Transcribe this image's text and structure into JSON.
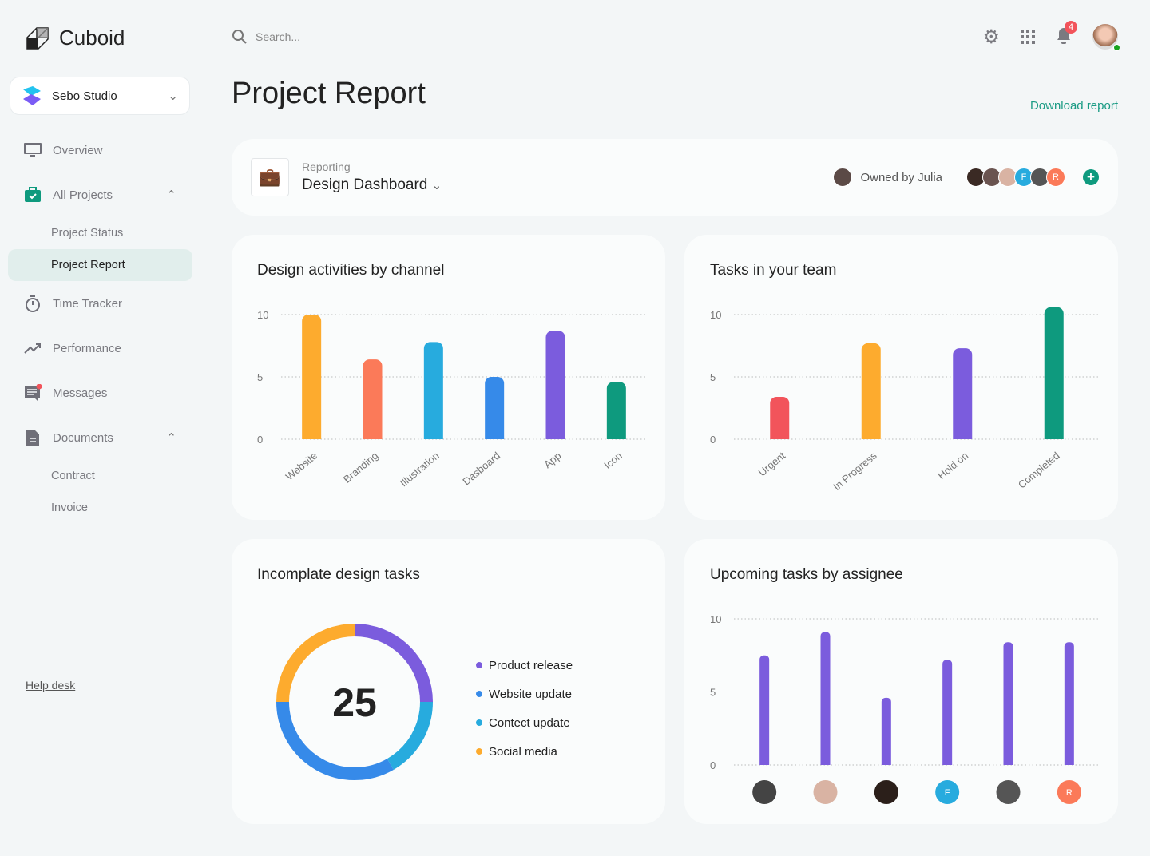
{
  "app": {
    "name": "Cuboid",
    "workspace": "Sebo Studio"
  },
  "sidebar": {
    "items": [
      {
        "label": "Overview",
        "icon": "monitor-icon"
      },
      {
        "label": "All Projects",
        "icon": "briefcase-check-icon"
      },
      {
        "label": "Project Status"
      },
      {
        "label": "Project Report",
        "active": true
      },
      {
        "label": "Time Tracker",
        "icon": "stopwatch-icon"
      },
      {
        "label": "Performance",
        "icon": "trend-icon"
      },
      {
        "label": "Messages",
        "icon": "message-icon"
      },
      {
        "label": "Documents",
        "icon": "document-icon"
      },
      {
        "label": "Contract"
      },
      {
        "label": "Invoice"
      }
    ],
    "help": "Help desk"
  },
  "header": {
    "search_placeholder": "Search...",
    "notifications": "4",
    "title": "Project Report",
    "download": "Download report"
  },
  "report": {
    "small": "Reporting",
    "name": "Design Dashboard",
    "owner": "Owned by Julia",
    "members": [
      "F",
      "R"
    ]
  },
  "colors": {
    "accent": "#0e9a7e",
    "orange": "#fdab2e",
    "coral": "#fb7a59",
    "cyan": "#27abde",
    "blue": "#368ae9",
    "purple": "#7b5cdd",
    "red": "#f2545b"
  },
  "chart_data": [
    {
      "type": "bar",
      "title": "Design activities by channel",
      "categories": [
        "Website",
        "Branding",
        "Illustration",
        "Dasboard",
        "App",
        "Icon"
      ],
      "values": [
        10,
        6.4,
        7.8,
        5,
        8.7,
        4.6
      ],
      "colors": [
        "#fdab2e",
        "#fb7a59",
        "#27abde",
        "#368ae9",
        "#7b5cdd",
        "#0e9a7e"
      ],
      "yticks": [
        "0",
        "5",
        "10"
      ],
      "ylim": [
        0,
        10
      ],
      "grid": true
    },
    {
      "type": "bar",
      "title": "Tasks in your team",
      "categories": [
        "Urgent",
        "In Progress",
        "Hold on",
        "Completed"
      ],
      "values": [
        3.4,
        7.7,
        7.3,
        10.6
      ],
      "colors": [
        "#f2545b",
        "#fdab2e",
        "#7b5cdd",
        "#0e9a7e"
      ],
      "yticks": [
        "0",
        "5",
        "10"
      ],
      "ylim": [
        0,
        10
      ],
      "grid": true
    },
    {
      "type": "pie",
      "title": "Incomplate design tasks",
      "total": "25",
      "labels": [
        "Product release",
        "Contect update",
        "Website update",
        "Social media"
      ],
      "values": [
        25,
        16.7,
        33.3,
        25
      ],
      "colors": [
        "#7b5cdd",
        "#27abde",
        "#368ae9",
        "#fdab2e"
      ]
    },
    {
      "type": "bar",
      "title": "Upcoming tasks by assignee",
      "categories": [
        "",
        "",
        "",
        "F",
        "",
        "R"
      ],
      "values": [
        7.5,
        9.1,
        4.6,
        7.2,
        8.4,
        8.4
      ],
      "color": "#7b5cdd",
      "yticks": [
        "0",
        "5",
        "10"
      ],
      "ylim": [
        0,
        10
      ],
      "grid": true
    }
  ],
  "legend_order": [
    "Product release",
    "Website update",
    "Contect update",
    "Social media"
  ],
  "legend_colors": [
    "#7b5cdd",
    "#368ae9",
    "#27abde",
    "#fdab2e"
  ]
}
